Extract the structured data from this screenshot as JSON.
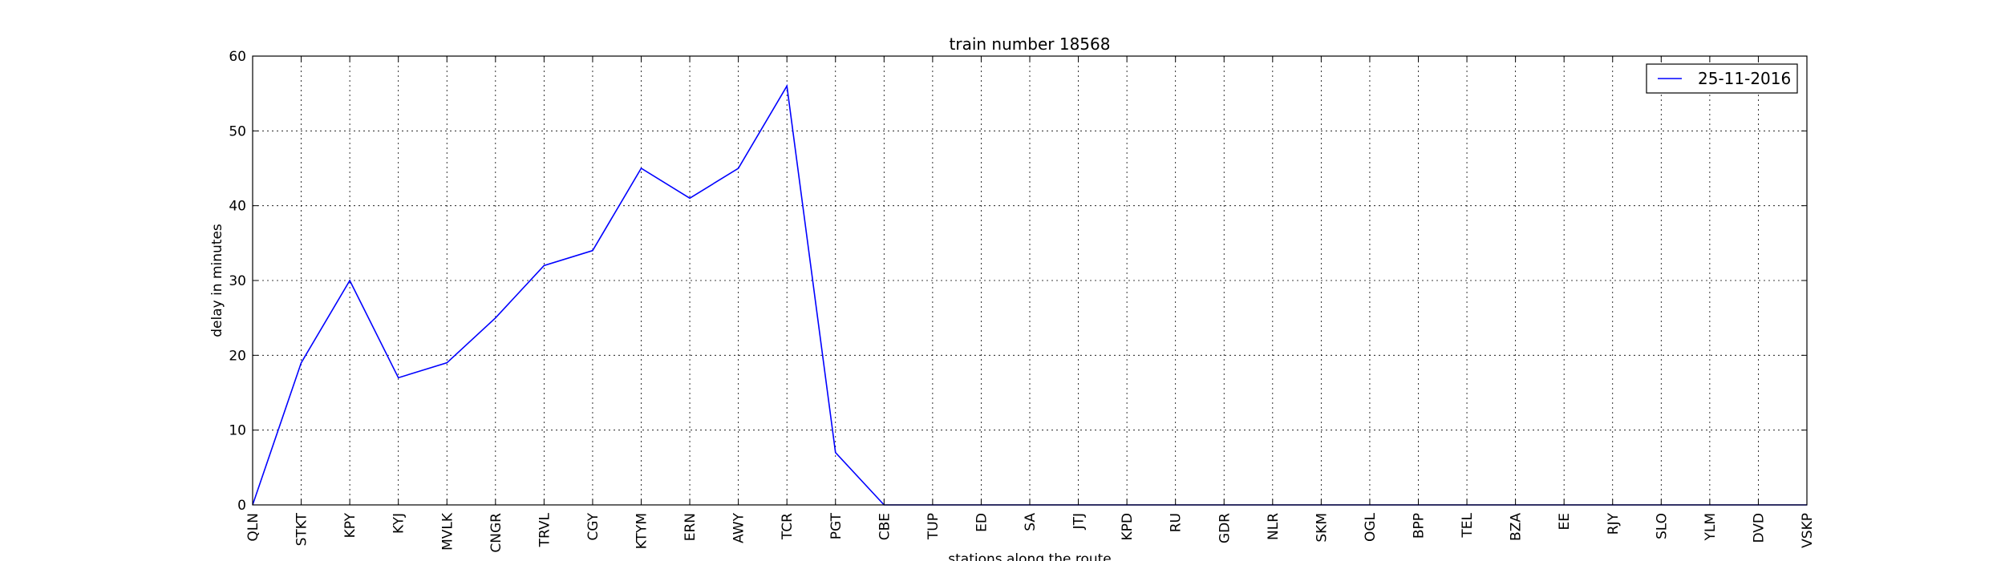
{
  "chart_data": {
    "type": "line",
    "title": "train number 18568",
    "xlabel": "stations along the route",
    "ylabel": "delay in minutes",
    "ylim": [
      0,
      60
    ],
    "yticks": [
      0,
      10,
      20,
      30,
      40,
      50,
      60
    ],
    "grid": true,
    "legend_position": "top-right",
    "categories": [
      "QLN",
      "STKT",
      "KPY",
      "KYJ",
      "MVLK",
      "CNGR",
      "TRVL",
      "CGY",
      "KTYM",
      "ERN",
      "AWY",
      "TCR",
      "PGT",
      "CBE",
      "TUP",
      "ED",
      "SA",
      "JTJ",
      "KPD",
      "RU",
      "GDR",
      "NLR",
      "SKM",
      "OGL",
      "BPP",
      "TEL",
      "BZA",
      "EE",
      "RJY",
      "SLO",
      "YLM",
      "DVD",
      "VSKP"
    ],
    "series": [
      {
        "name": "25-11-2016",
        "color": "#0000ff",
        "values": [
          0,
          19,
          30,
          17,
          19,
          25,
          32,
          34,
          45,
          41,
          45,
          56,
          7,
          0,
          0,
          0,
          0,
          0,
          0,
          0,
          0,
          0,
          0,
          0,
          0,
          0,
          0,
          0,
          0,
          0,
          0,
          0,
          0
        ]
      }
    ]
  }
}
